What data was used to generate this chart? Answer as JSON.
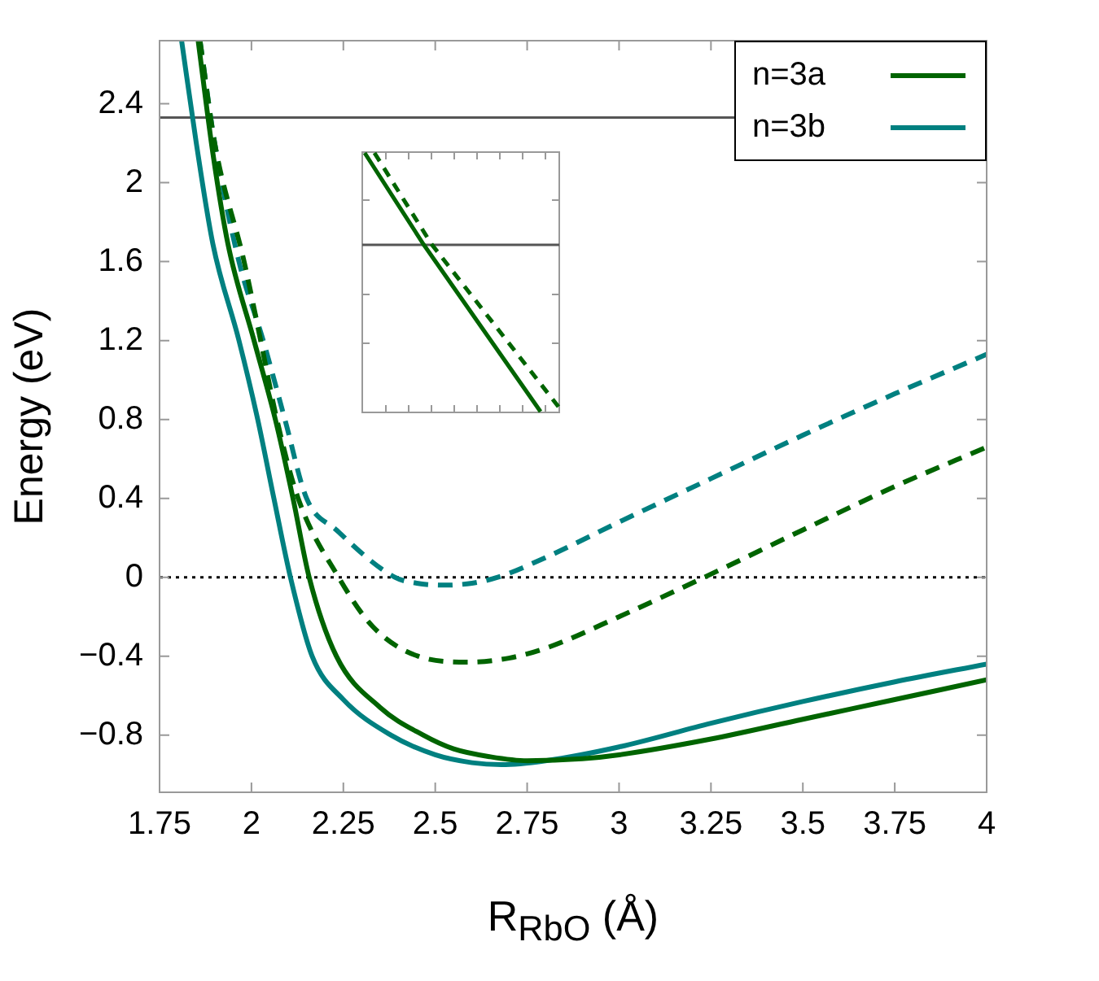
{
  "chart_data": {
    "type": "line",
    "xlabel": "R$_{RbO}$ (Å)",
    "ylabel": "Energy (eV)",
    "xlim": [
      1.75,
      4
    ],
    "xticks": [
      1.75,
      2,
      2.25,
      2.5,
      2.75,
      3,
      3.25,
      3.5,
      3.75,
      4
    ],
    "ylim": [
      -1.09,
      2.72
    ],
    "yticks": [
      {
        "value": -0.8,
        "label": "−0.8"
      },
      {
        "value": -0.4,
        "label": "−0.4"
      },
      0,
      0.4,
      0.8,
      1.2,
      1.6,
      2,
      2.4
    ],
    "legend": "top right",
    "marker": "none",
    "ref_lines": [
      {
        "axis": "y",
        "value": 2.33,
        "color": "#555555",
        "line_style": "solid"
      },
      {
        "axis": "y",
        "value": 0,
        "color": "#000000",
        "line_style": "dotted"
      }
    ],
    "series": [
      {
        "name": "n=3a",
        "color": "#006400",
        "line_style": "solid",
        "x": [
          1.855,
          1.895,
          1.936,
          2.007,
          2.065,
          2.113,
          2.157,
          2.231,
          2.35,
          2.467,
          2.55,
          2.65,
          2.75,
          2.9,
          3.0,
          3.25,
          3.5,
          3.75,
          4.0
        ],
        "values": [
          2.72,
          2.15,
          1.69,
          1.2,
          0.8,
          0.4,
          0,
          -0.4,
          -0.66,
          -0.8,
          -0.87,
          -0.91,
          -0.93,
          -0.92,
          -0.9,
          -0.82,
          -0.72,
          -0.62,
          -0.52
        ]
      },
      {
        "name": "n=3b",
        "color": "#008080",
        "line_style": "solid",
        "x": [
          1.81,
          1.85,
          1.895,
          1.966,
          2.017,
          2.061,
          2.106,
          2.165,
          2.25,
          2.379,
          2.5,
          2.6,
          2.68,
          2.8,
          3.0,
          3.25,
          3.5,
          3.75,
          4.0
        ],
        "values": [
          2.72,
          2.2,
          1.69,
          1.2,
          0.8,
          0.4,
          0,
          -0.4,
          -0.62,
          -0.8,
          -0.9,
          -0.94,
          -0.95,
          -0.93,
          -0.86,
          -0.74,
          -0.63,
          -0.53,
          -0.44
        ]
      },
      {
        "color": "#006400",
        "line_style": "dashed",
        "x": [
          1.86,
          1.9,
          1.98,
          2.025,
          2.069,
          2.127,
          2.237,
          2.33,
          2.453,
          2.59,
          2.7,
          2.8,
          3.0,
          3.232,
          3.5,
          3.75,
          4.0
        ],
        "values": [
          2.72,
          2.2,
          1.6,
          1.2,
          0.8,
          0.4,
          0,
          -0.25,
          -0.4,
          -0.43,
          -0.41,
          -0.36,
          -0.2,
          0,
          0.24,
          0.46,
          0.66
        ]
      },
      {
        "color": "#008080",
        "line_style": "dashed",
        "x": [
          1.86,
          1.9,
          1.966,
          2.032,
          2.091,
          2.15,
          2.231,
          2.39,
          2.45,
          2.525,
          2.6,
          2.67,
          2.8,
          3.0,
          3.25,
          3.5,
          3.75,
          4.0
        ],
        "values": [
          2.72,
          2.2,
          1.6,
          1.2,
          0.8,
          0.4,
          0.24,
          0,
          -0.03,
          -0.04,
          -0.03,
          0,
          0.1,
          0.28,
          0.5,
          0.72,
          0.93,
          1.13
        ]
      }
    ]
  }
}
